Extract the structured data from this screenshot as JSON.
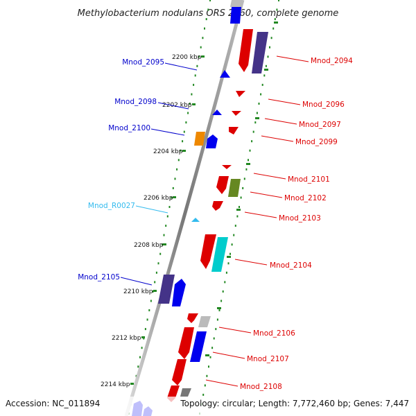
{
  "title": "Methylobacterium nodulans ORS 2060, complete genome",
  "footer": {
    "accession": "Accession: NC_011894",
    "summary": "Topology: circular; Length: 7,772,460 bp; Genes: 7,447"
  },
  "scale": {
    "kbp_ticks": [
      {
        "kbp": 2200,
        "label": "2200 kbp"
      },
      {
        "kbp": 2202,
        "label": "2202 kbp"
      },
      {
        "kbp": 2204,
        "label": "2204 kbp"
      },
      {
        "kbp": 2206,
        "label": "2206 kbp"
      },
      {
        "kbp": 2208,
        "label": "2208 kbp"
      },
      {
        "kbp": 2210,
        "label": "2210 kbp"
      },
      {
        "kbp": 2212,
        "label": "2212 kbp"
      },
      {
        "kbp": 2214,
        "label": "2214 kbp"
      }
    ]
  },
  "colors": {
    "forward": "#0000ee",
    "reverse": "#dd0000",
    "rna": "#33bbee",
    "backbone": "#888888",
    "ruler": "#228822"
  },
  "gene_labels": {
    "left": [
      {
        "name": "Mnod_2095",
        "color": "#0000cc"
      },
      {
        "name": "Mnod_2098",
        "color": "#0000cc"
      },
      {
        "name": "Mnod_2100",
        "color": "#0000cc"
      },
      {
        "name": "Mnod_R0027",
        "color": "#33bbee"
      },
      {
        "name": "Mnod_2105",
        "color": "#0000cc"
      }
    ],
    "right": [
      {
        "name": "Mnod_2094",
        "color": "#dd0000"
      },
      {
        "name": "Mnod_2096",
        "color": "#dd0000"
      },
      {
        "name": "Mnod_2097",
        "color": "#dd0000"
      },
      {
        "name": "Mnod_2099",
        "color": "#dd0000"
      },
      {
        "name": "Mnod_2101",
        "color": "#dd0000"
      },
      {
        "name": "Mnod_2102",
        "color": "#dd0000"
      },
      {
        "name": "Mnod_2103",
        "color": "#dd0000"
      },
      {
        "name": "Mnod_2104",
        "color": "#dd0000"
      },
      {
        "name": "Mnod_2106",
        "color": "#dd0000"
      },
      {
        "name": "Mnod_2107",
        "color": "#dd0000"
      },
      {
        "name": "Mnod_2108",
        "color": "#dd0000"
      }
    ]
  },
  "gene_features": [
    {
      "strand": "forward",
      "color": "#0000ee"
    },
    {
      "strand": "reverse",
      "color": "#dd0000"
    },
    {
      "strand": "reverse",
      "color": "#443388"
    },
    {
      "strand": "forward",
      "color": "#0000ee"
    },
    {
      "strand": "reverse",
      "color": "#dd0000"
    },
    {
      "strand": "forward",
      "color": "#0000ee"
    },
    {
      "strand": "reverse",
      "color": "#dd0000"
    },
    {
      "strand": "reverse",
      "color": "#dd0000"
    },
    {
      "strand": "forward",
      "color": "#ee8800"
    },
    {
      "strand": "forward",
      "color": "#0000ee"
    },
    {
      "strand": "reverse",
      "color": "#dd0000"
    },
    {
      "strand": "reverse",
      "color": "#dd0000"
    },
    {
      "strand": "reverse",
      "color": "#668822"
    },
    {
      "strand": "reverse",
      "color": "#dd0000"
    },
    {
      "strand": "forward",
      "color": "#33bbee"
    },
    {
      "strand": "reverse",
      "color": "#dd0000"
    },
    {
      "strand": "reverse",
      "color": "#00cccc"
    },
    {
      "strand": "forward",
      "color": "#443388"
    },
    {
      "strand": "forward",
      "color": "#0000ee"
    },
    {
      "strand": "reverse",
      "color": "#dd0000"
    },
    {
      "strand": "reverse",
      "color": "#bbbbbb"
    },
    {
      "strand": "reverse",
      "color": "#dd0000"
    },
    {
      "strand": "reverse",
      "color": "#0000ee"
    },
    {
      "strand": "reverse",
      "color": "#dd0000"
    },
    {
      "strand": "reverse",
      "color": "#dd0000"
    },
    {
      "strand": "reverse",
      "color": "#777777"
    },
    {
      "strand": "forward",
      "color": "#0000ee"
    },
    {
      "strand": "forward",
      "color": "#0000ee"
    },
    {
      "strand": "forward",
      "color": "#0000ee"
    }
  ]
}
